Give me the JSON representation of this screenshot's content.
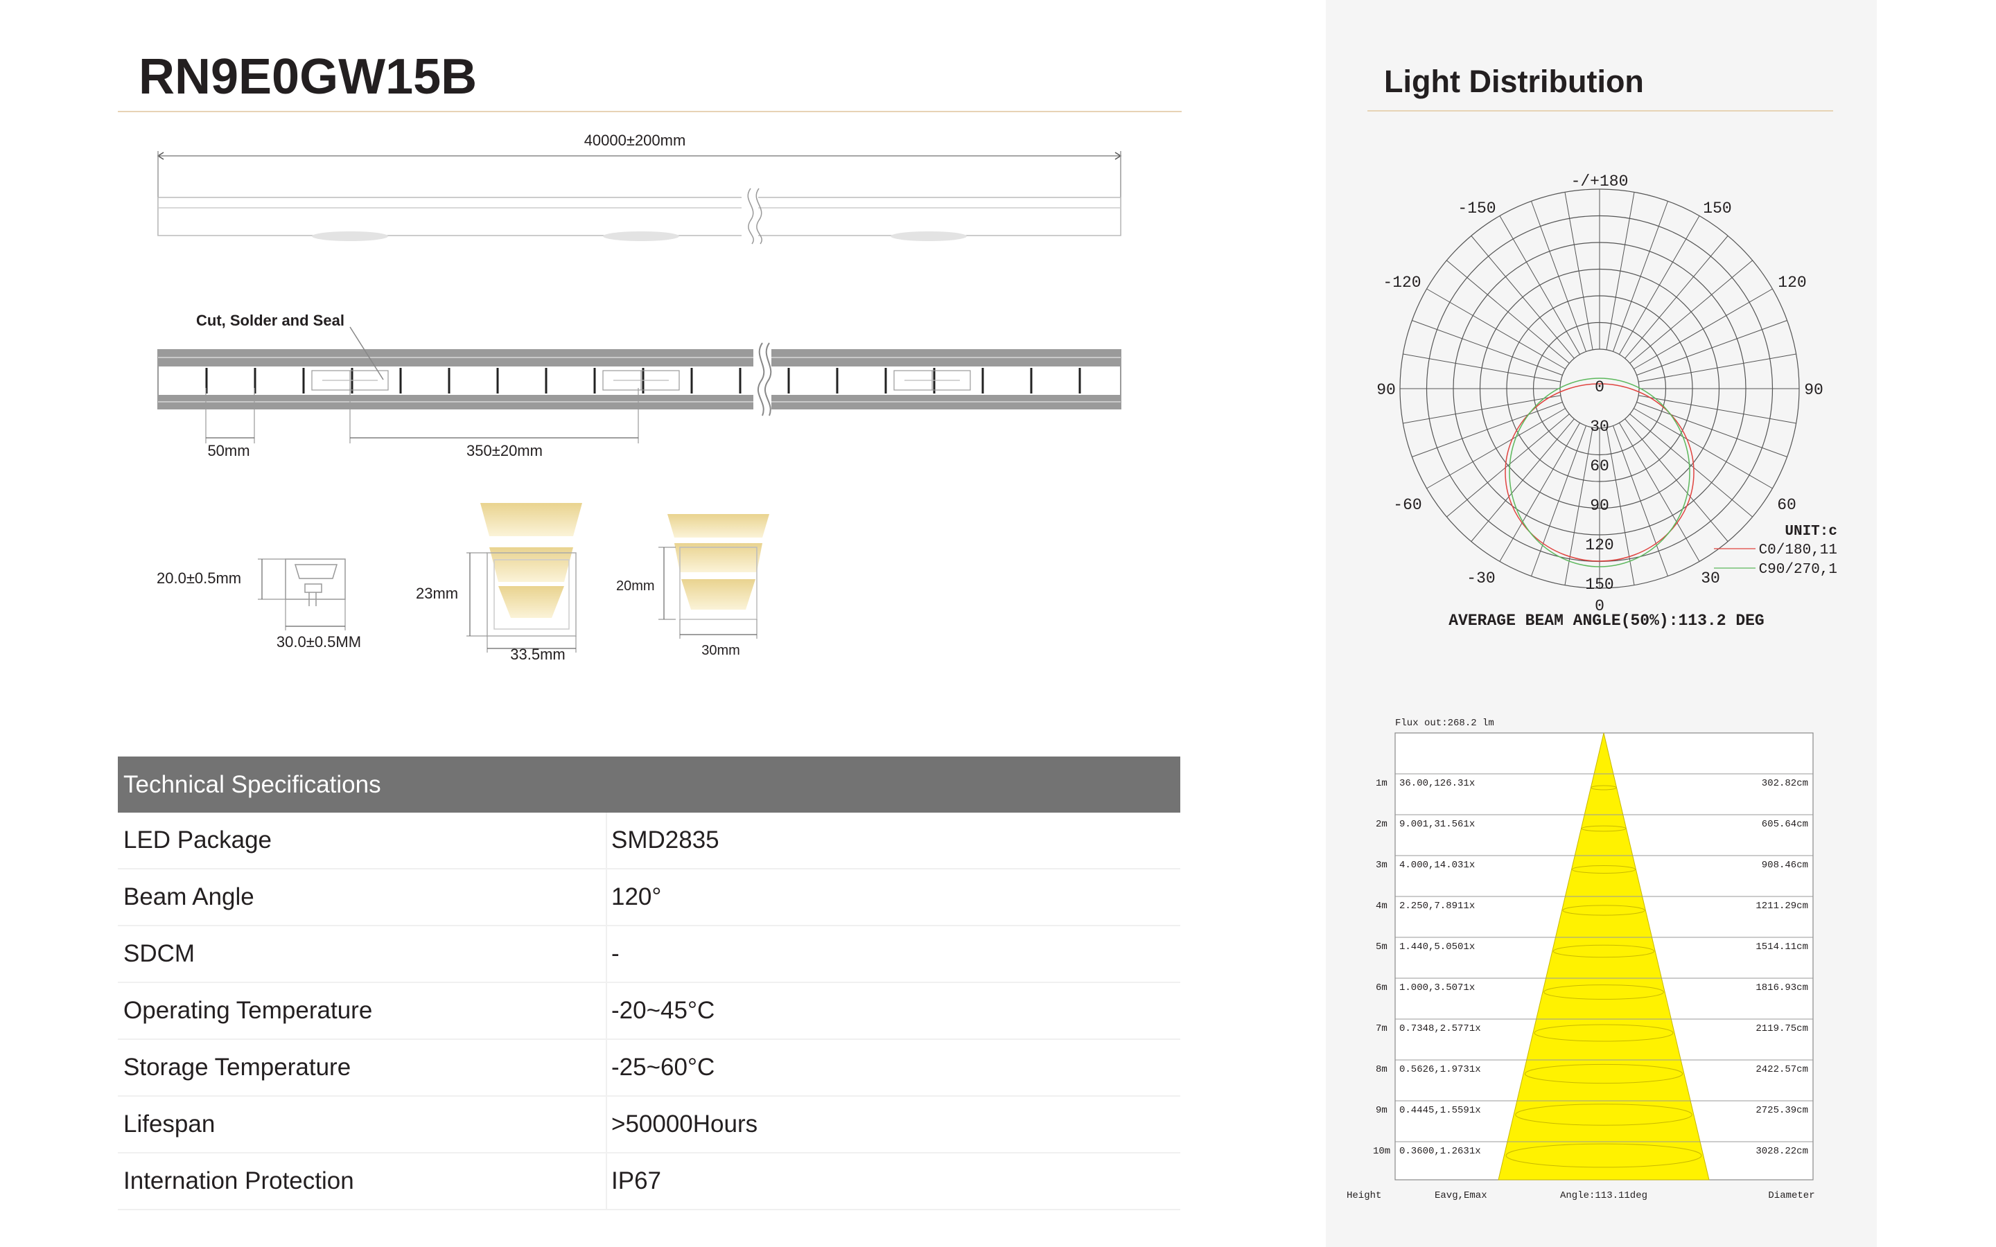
{
  "product": {
    "title": "RN9E0GW15B"
  },
  "drawing": {
    "length_label": "40000±200mm",
    "cut_label": "Cut, Solder and Seal",
    "segment_label": "50mm",
    "cut_interval_label": "350±20mm",
    "profile1_height": "20.0±0.5mm",
    "profile1_width": "30.0±0.5MM",
    "profile2_height": "23mm",
    "profile2_width": "33.5mm",
    "profile3_height": "20mm",
    "profile3_width": "30mm"
  },
  "specs": {
    "header": "Technical Specifications",
    "rows": [
      {
        "key": "LED Package",
        "value": "SMD2835"
      },
      {
        "key": "Beam Angle",
        "value": "120°"
      },
      {
        "key": "SDCM",
        "value": "-"
      },
      {
        "key": "Operating Temperature",
        "value": "-20~45°C"
      },
      {
        "key": "Storage Temperature",
        "value": "-25~60°C"
      },
      {
        "key": "Lifespan",
        "value": ">50000Hours"
      },
      {
        "key": "Internation Protection",
        "value": "IP67"
      }
    ]
  },
  "light_distribution": {
    "title": "Light Distribution",
    "polar": {
      "angle_labels": [
        "-/+180",
        "-150",
        "150",
        "-120",
        "120",
        "90",
        "90",
        "-60",
        "60",
        "-30",
        "30",
        "0"
      ],
      "radial_labels": [
        "0",
        "30",
        "60",
        "90",
        "120",
        "150"
      ],
      "unit": "UNIT:c",
      "legend": [
        "C0/180,11",
        "C90/270,1"
      ],
      "beam_angle_text": "AVERAGE BEAM ANGLE(50%):113.2 DEG",
      "colors": {
        "c0": "#e0433f",
        "c90": "#5cb85c"
      }
    },
    "beam": {
      "flux": "Flux out:268.2 lm",
      "rows": [
        {
          "height": "1m",
          "eavg": "36.00,126.31x",
          "diameter": "302.82cm"
        },
        {
          "height": "2m",
          "eavg": "9.001,31.561x",
          "diameter": "605.64cm"
        },
        {
          "height": "3m",
          "eavg": "4.000,14.031x",
          "diameter": "908.46cm"
        },
        {
          "height": "4m",
          "eavg": "2.250,7.8911x",
          "diameter": "1211.29cm"
        },
        {
          "height": "5m",
          "eavg": "1.440,5.0501x",
          "diameter": "1514.11cm"
        },
        {
          "height": "6m",
          "eavg": "1.000,3.5071x",
          "diameter": "1816.93cm"
        },
        {
          "height": "7m",
          "eavg": "0.7348,2.5771x",
          "diameter": "2119.75cm"
        },
        {
          "height": "8m",
          "eavg": "0.5626,1.9731x",
          "diameter": "2422.57cm"
        },
        {
          "height": "9m",
          "eavg": "0.4445,1.5591x",
          "diameter": "2725.39cm"
        },
        {
          "height": "10m",
          "eavg": "0.3600,1.2631x",
          "diameter": "3028.22cm"
        }
      ],
      "footer": {
        "height": "Height",
        "eavg": "Eavg,Emax",
        "angle": "Angle:113.11deg",
        "diameter": "Diameter"
      },
      "cone_color": "#fff200"
    }
  }
}
